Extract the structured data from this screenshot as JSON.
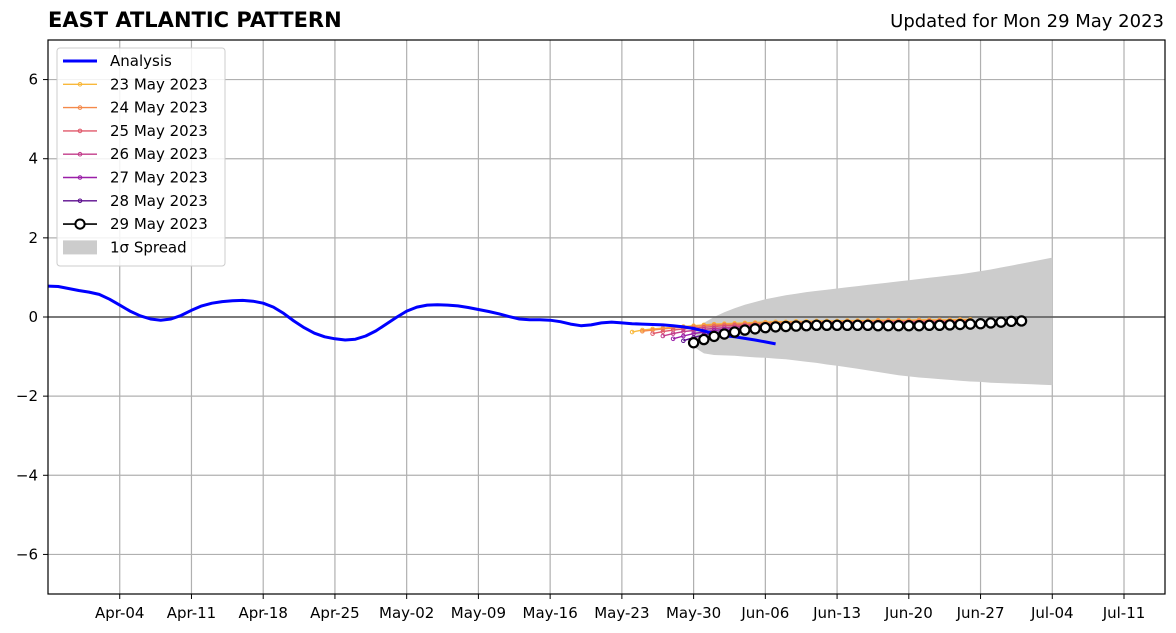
{
  "chart_data": {
    "type": "line",
    "title": "EAST ATLANTIC PATTERN",
    "subtitle": "Updated for Mon 29 May 2023",
    "xlabel": "",
    "ylabel": "",
    "ylim": [
      -7,
      7
    ],
    "xlim": [
      "2023-03-28",
      "2023-07-15"
    ],
    "grid": true,
    "legend_position": "top-left",
    "x_ticks": [
      "2023-04-04",
      "2023-04-11",
      "2023-04-18",
      "2023-04-25",
      "2023-05-02",
      "2023-05-09",
      "2023-05-16",
      "2023-05-23",
      "2023-05-30",
      "2023-06-06",
      "2023-06-13",
      "2023-06-20",
      "2023-06-27",
      "2023-07-04",
      "2023-07-11"
    ],
    "x_tick_labels": [
      "Apr-04",
      "Apr-11",
      "Apr-18",
      "Apr-25",
      "May-02",
      "May-09",
      "May-16",
      "May-23",
      "May-30",
      "Jun-06",
      "Jun-13",
      "Jun-20",
      "Jun-27",
      "Jul-04",
      "Jul-11"
    ],
    "y_ticks": [
      6,
      4,
      2,
      0,
      -2,
      -4,
      -6
    ],
    "y_tick_labels": [
      "6",
      "4",
      "2",
      "0",
      "−2",
      "−4",
      "−6"
    ],
    "analysis": {
      "name": "Analysis",
      "color": "#0000ff",
      "start": "2023-03-28",
      "values": [
        0.78,
        0.77,
        0.72,
        0.67,
        0.63,
        0.57,
        0.45,
        0.3,
        0.15,
        0.03,
        -0.05,
        -0.08,
        -0.05,
        0.04,
        0.17,
        0.28,
        0.35,
        0.39,
        0.41,
        0.42,
        0.4,
        0.35,
        0.25,
        0.09,
        -0.1,
        -0.27,
        -0.41,
        -0.5,
        -0.55,
        -0.58,
        -0.56,
        -0.48,
        -0.35,
        -0.18,
        -0.01,
        0.15,
        0.25,
        0.3,
        0.31,
        0.3,
        0.28,
        0.24,
        0.19,
        0.14,
        0.08,
        0.01,
        -0.05,
        -0.07,
        -0.07,
        -0.08,
        -0.12,
        -0.18,
        -0.22,
        -0.2,
        -0.15,
        -0.13,
        -0.15,
        -0.17,
        -0.18,
        -0.19,
        -0.2,
        -0.22,
        -0.25,
        -0.29,
        -0.35,
        -0.42,
        -0.47,
        -0.5,
        -0.54,
        -0.58,
        -0.63,
        -0.68
      ]
    },
    "forecasts": [
      {
        "name": "23 May 2023",
        "color": "#f9b83a",
        "start": "2023-05-24",
        "values": [
          -0.38,
          -0.33,
          -0.3,
          -0.28,
          -0.26,
          -0.24,
          -0.22,
          -0.2,
          -0.18,
          -0.17,
          -0.16,
          -0.15,
          -0.14,
          -0.13,
          -0.12,
          -0.12,
          -0.11,
          -0.11,
          -0.1,
          -0.1,
          -0.1,
          -0.09,
          -0.09,
          -0.09,
          -0.08,
          -0.08,
          -0.08,
          -0.08,
          -0.07,
          -0.07,
          -0.07,
          -0.07,
          -0.06,
          -0.06
        ]
      },
      {
        "name": "24 May 2023",
        "color": "#f4894a",
        "start": "2023-05-25",
        "values": [
          -0.36,
          -0.33,
          -0.3,
          -0.28,
          -0.26,
          -0.24,
          -0.22,
          -0.2,
          -0.19,
          -0.18,
          -0.17,
          -0.16,
          -0.15,
          -0.14,
          -0.14,
          -0.13,
          -0.13,
          -0.12,
          -0.12,
          -0.12,
          -0.11,
          -0.11,
          -0.11,
          -0.1,
          -0.1,
          -0.1,
          -0.1,
          -0.09,
          -0.09,
          -0.09,
          -0.09,
          -0.08,
          -0.08
        ]
      },
      {
        "name": "25 May 2023",
        "color": "#e0586a",
        "start": "2023-05-26",
        "values": [
          -0.42,
          -0.37,
          -0.33,
          -0.3,
          -0.28,
          -0.26,
          -0.24,
          -0.22,
          -0.21,
          -0.2,
          -0.19,
          -0.18,
          -0.17,
          -0.16,
          -0.16,
          -0.15,
          -0.15,
          -0.14,
          -0.14,
          -0.14,
          -0.13,
          -0.13,
          -0.13,
          -0.12,
          -0.12,
          -0.12,
          -0.12,
          -0.11,
          -0.11,
          -0.11,
          -0.11,
          -0.1
        ]
      },
      {
        "name": "26 May 2023",
        "color": "#c23b8a",
        "start": "2023-05-27",
        "values": [
          -0.48,
          -0.42,
          -0.37,
          -0.34,
          -0.31,
          -0.29,
          -0.27,
          -0.25,
          -0.23,
          -0.22,
          -0.21,
          -0.2,
          -0.19,
          -0.18,
          -0.18,
          -0.17,
          -0.17,
          -0.16,
          -0.16,
          -0.16,
          -0.15,
          -0.15,
          -0.15,
          -0.14,
          -0.14,
          -0.14,
          -0.14,
          -0.13,
          -0.13,
          -0.13,
          -0.13
        ]
      },
      {
        "name": "27 May 2023",
        "color": "#9a1fa8",
        "start": "2023-05-28",
        "values": [
          -0.55,
          -0.48,
          -0.42,
          -0.38,
          -0.34,
          -0.31,
          -0.29,
          -0.27,
          -0.25,
          -0.24,
          -0.23,
          -0.22,
          -0.21,
          -0.2,
          -0.2,
          -0.19,
          -0.19,
          -0.18,
          -0.18,
          -0.18,
          -0.17,
          -0.17,
          -0.17,
          -0.16,
          -0.16,
          -0.16,
          -0.15,
          -0.15,
          -0.15,
          -0.15
        ]
      },
      {
        "name": "28 May 2023",
        "color": "#5b0c8e",
        "start": "2023-05-29",
        "values": [
          -0.6,
          -0.52,
          -0.45,
          -0.4,
          -0.36,
          -0.33,
          -0.3,
          -0.28,
          -0.26,
          -0.25,
          -0.24,
          -0.23,
          -0.22,
          -0.21,
          -0.21,
          -0.2,
          -0.2,
          -0.2,
          -0.19,
          -0.19,
          -0.19,
          -0.18,
          -0.18,
          -0.18,
          -0.17,
          -0.17,
          -0.17,
          -0.17,
          -0.16
        ]
      },
      {
        "name": "29 May 2023",
        "color": "#000000",
        "markers": "open-circle",
        "start": "2023-05-30",
        "values": [
          -0.65,
          -0.57,
          -0.49,
          -0.43,
          -0.38,
          -0.33,
          -0.3,
          -0.27,
          -0.25,
          -0.24,
          -0.23,
          -0.22,
          -0.21,
          -0.21,
          -0.21,
          -0.21,
          -0.21,
          -0.21,
          -0.22,
          -0.22,
          -0.22,
          -0.22,
          -0.22,
          -0.21,
          -0.21,
          -0.2,
          -0.19,
          -0.18,
          -0.17,
          -0.15,
          -0.13,
          -0.11,
          -0.1
        ]
      }
    ],
    "spread": {
      "name": "1σ Spread",
      "label_prefix": "1",
      "label_symbol": "σ",
      "label_suffix": " Spread",
      "color": "#cccccc",
      "start": "2023-05-30",
      "upper": [
        -0.35,
        -0.15,
        0.0,
        0.12,
        0.22,
        0.31,
        0.38,
        0.45,
        0.5,
        0.55,
        0.59,
        0.63,
        0.66,
        0.69,
        0.72,
        0.75,
        0.78,
        0.81,
        0.84,
        0.87,
        0.9,
        0.93,
        0.96,
        0.99,
        1.02,
        1.05,
        1.08,
        1.12,
        1.16,
        1.2,
        1.25,
        1.3,
        1.35,
        1.4,
        1.45,
        1.5
      ],
      "lower": [
        -0.75,
        -0.92,
        -0.96,
        -0.97,
        -0.98,
        -1.0,
        -1.02,
        -1.03,
        -1.05,
        -1.07,
        -1.1,
        -1.13,
        -1.16,
        -1.2,
        -1.23,
        -1.27,
        -1.31,
        -1.35,
        -1.39,
        -1.43,
        -1.47,
        -1.5,
        -1.53,
        -1.55,
        -1.57,
        -1.59,
        -1.61,
        -1.63,
        -1.64,
        -1.66,
        -1.67,
        -1.68,
        -1.69,
        -1.7,
        -1.71,
        -1.72
      ]
    }
  }
}
